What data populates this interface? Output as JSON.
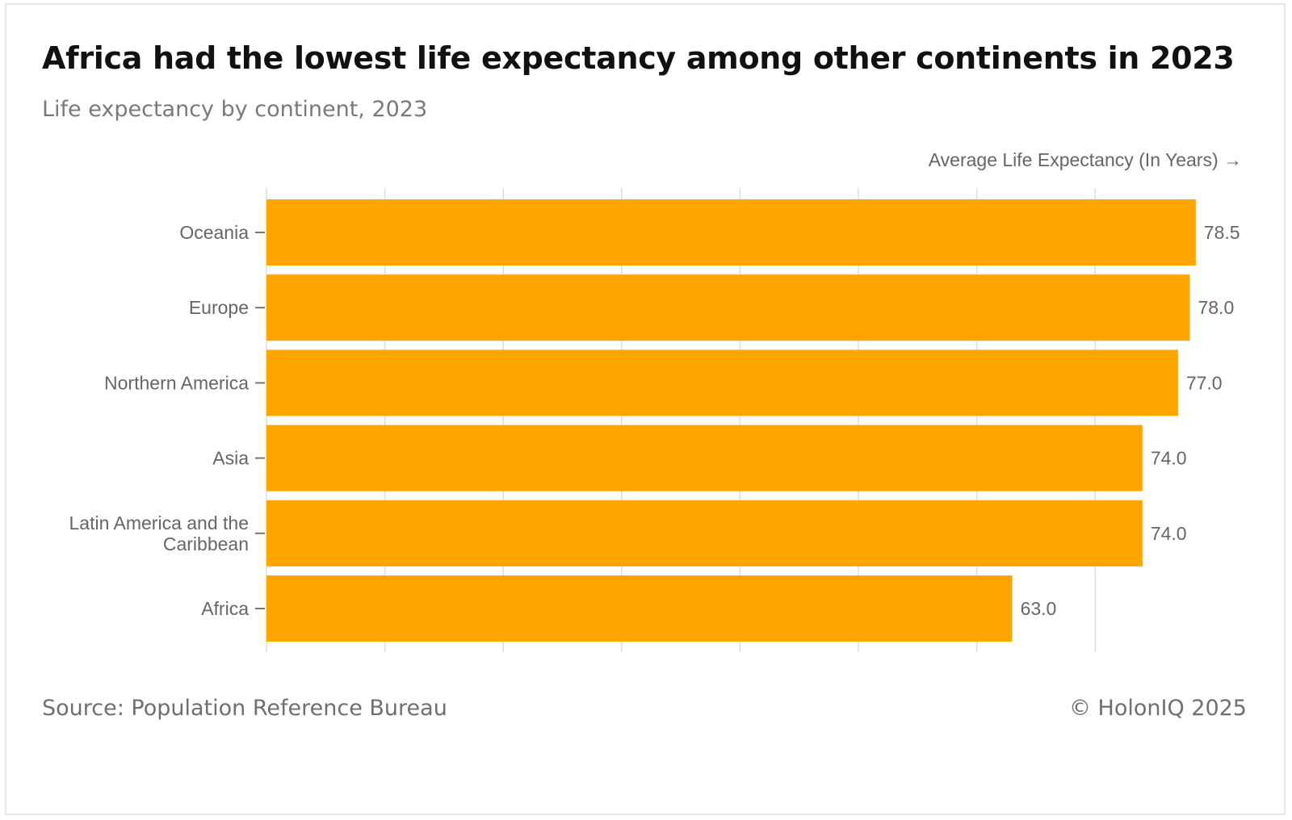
{
  "header": {
    "title": "Africa had the lowest life expectancy among other continents in 2023",
    "subtitle": "Life expectancy by continent, 2023"
  },
  "chart_data": {
    "type": "bar",
    "orientation": "horizontal",
    "categories": [
      "Oceania",
      "Europe",
      "Northern America",
      "Asia",
      "Latin America and the Caribbean",
      "Africa"
    ],
    "values": [
      78.5,
      78.0,
      77.0,
      74.0,
      74.0,
      63.0
    ],
    "value_labels": [
      "78.5",
      "78.0",
      "77.0",
      "74.0",
      "74.0",
      "63.0"
    ],
    "xlabel": "Average Life Expectancy (In Years) →",
    "xlim": [
      0,
      80
    ],
    "grid": true,
    "bar_color": "#FFA500"
  },
  "footer": {
    "source": "Source: Population Reference Bureau",
    "copyright": "© HolonIQ 2025"
  }
}
